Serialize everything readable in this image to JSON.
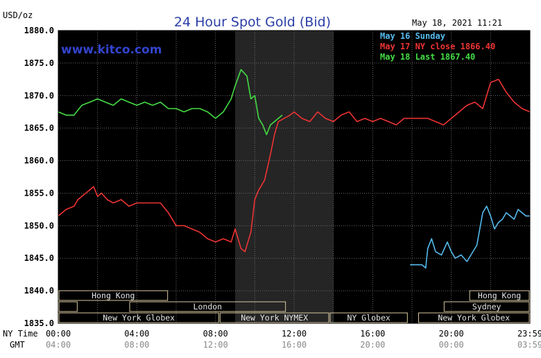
{
  "chart_data": {
    "type": "line",
    "title": "24 Hour Spot Gold (Bid)",
    "ylabel": "USD/oz",
    "timestamp": "May 18, 2021 11:21",
    "watermark": "www.kitco.com",
    "ylim": [
      1835,
      1880
    ],
    "y_ticks": [
      "1880.0",
      "1875.0",
      "1870.0",
      "1865.0",
      "1860.0",
      "1855.0",
      "1850.0",
      "1845.0",
      "1840.0",
      "1835.0"
    ],
    "x_row_labels": {
      "ny": "NY Time",
      "gmt": "GMT"
    },
    "x_ticks_ny": [
      "00:00",
      "04:00",
      "08:00",
      "12:00",
      "16:00",
      "20:00",
      "23:59"
    ],
    "x_ticks_gmt": [
      "04:00",
      "08:00",
      "12:00",
      "16:00",
      "20:00",
      "00:00",
      "03:59"
    ],
    "x_tick_hours": [
      0,
      4,
      8,
      12,
      16,
      20,
      24
    ],
    "grid": true,
    "highlight_hours": [
      9,
      14
    ],
    "legend_position": "top-right",
    "legend": [
      {
        "text": "May 16 Sunday",
        "color": "#55bbee"
      },
      {
        "text": "May 17 NY close 1866.40",
        "color": "#ee3333"
      },
      {
        "text": "May 18 Last 1867.40",
        "color": "#44dd44"
      }
    ],
    "sessions": [
      {
        "label": "Hong Kong",
        "row": 0,
        "start": 0,
        "end": 5.6
      },
      {
        "label": "Hong Kong",
        "row": 0,
        "start": 20.9,
        "end": 24
      },
      {
        "label": "",
        "row": 1,
        "start": 0,
        "end": 1.0
      },
      {
        "label": "London",
        "row": 1,
        "start": 3.6,
        "end": 11.6
      },
      {
        "label": "Sydney",
        "row": 1,
        "start": 19.6,
        "end": 24
      },
      {
        "label": "New York Globex",
        "row": 2,
        "start": 0,
        "end": 8.2
      },
      {
        "label": "New York NYMEX",
        "row": 2,
        "start": 8.2,
        "end": 13.8
      },
      {
        "label": "NY Globex",
        "row": 2,
        "start": 13.8,
        "end": 17.8
      },
      {
        "label": "New York Globex",
        "row": 2,
        "start": 18.3,
        "end": 24
      }
    ],
    "series": [
      {
        "color": "#55bbee",
        "x": [
          17.9,
          18.5,
          18.7,
          18.8,
          19.0,
          19.2,
          19.5,
          19.8,
          20.0,
          20.2,
          20.5,
          20.8,
          21.0,
          21.3,
          21.6,
          21.8,
          22.0,
          22.2,
          22.4,
          22.6,
          22.8,
          23.0,
          23.2,
          23.4,
          23.6,
          23.8,
          24.0
        ],
        "y": [
          1844.0,
          1844.0,
          1843.5,
          1846.5,
          1848.0,
          1846.0,
          1845.5,
          1847.5,
          1846.0,
          1845.0,
          1845.5,
          1844.5,
          1845.5,
          1847.0,
          1852.0,
          1853.0,
          1851.5,
          1849.5,
          1850.5,
          1851.0,
          1852.0,
          1851.5,
          1851.0,
          1852.5,
          1852.0,
          1851.5,
          1851.5
        ]
      },
      {
        "color": "#ee3333",
        "x": [
          0,
          0.4,
          0.8,
          1.0,
          1.4,
          1.8,
          2.0,
          2.2,
          2.5,
          2.8,
          3.2,
          3.6,
          4.0,
          4.4,
          4.8,
          5.2,
          5.6,
          6.0,
          6.4,
          6.8,
          7.2,
          7.6,
          8.0,
          8.4,
          8.8,
          9.0,
          9.3,
          9.5,
          9.8,
          10.0,
          10.2,
          10.5,
          10.8,
          11.0,
          11.2,
          11.5,
          11.8,
          12.0,
          12.4,
          12.8,
          13.2,
          13.6,
          14.0,
          14.4,
          14.8,
          15.2,
          15.6,
          16.0,
          16.4,
          16.8,
          17.2,
          17.6,
          18.0,
          18.4,
          18.8,
          19.2,
          19.6,
          20.0,
          20.4,
          20.8,
          21.2,
          21.6,
          22.0,
          22.4,
          22.8,
          23.2,
          23.6,
          24.0
        ],
        "y": [
          1851.5,
          1852.5,
          1853.0,
          1854.0,
          1855.0,
          1856.0,
          1854.5,
          1855.0,
          1854.0,
          1853.5,
          1854.0,
          1853.0,
          1853.5,
          1853.5,
          1853.5,
          1853.5,
          1852.0,
          1850.0,
          1850.0,
          1849.5,
          1849.0,
          1848.0,
          1847.5,
          1848.0,
          1847.5,
          1849.5,
          1846.5,
          1846.0,
          1849.0,
          1854.0,
          1855.5,
          1857.0,
          1861.0,
          1864.0,
          1866.0,
          1866.5,
          1867.0,
          1867.5,
          1866.5,
          1866.0,
          1867.5,
          1866.5,
          1866.0,
          1867.0,
          1867.5,
          1866.0,
          1866.5,
          1866.0,
          1866.5,
          1866.0,
          1865.5,
          1866.5,
          1866.5,
          1866.5,
          1866.5,
          1866.0,
          1865.5,
          1866.5,
          1867.5,
          1868.5,
          1869.0,
          1868.0,
          1872.0,
          1872.5,
          1870.5,
          1869.0,
          1868.0,
          1867.5
        ]
      },
      {
        "color": "#44dd44",
        "x": [
          0,
          0.4,
          0.8,
          1.2,
          1.6,
          2.0,
          2.4,
          2.8,
          3.2,
          3.6,
          4.0,
          4.4,
          4.8,
          5.2,
          5.6,
          6.0,
          6.4,
          6.8,
          7.2,
          7.6,
          8.0,
          8.4,
          8.8,
          9.0,
          9.3,
          9.6,
          9.8,
          10.0,
          10.2,
          10.4,
          10.6,
          10.8,
          11.0,
          11.2,
          11.4
        ],
        "y": [
          1867.5,
          1867.0,
          1867.0,
          1868.5,
          1869.0,
          1869.5,
          1869.0,
          1868.5,
          1869.5,
          1869.0,
          1868.5,
          1869.0,
          1868.5,
          1869.0,
          1868.0,
          1868.0,
          1867.5,
          1868.0,
          1868.0,
          1867.5,
          1866.5,
          1867.5,
          1869.5,
          1871.5,
          1874.0,
          1873.0,
          1869.5,
          1870.0,
          1866.5,
          1865.5,
          1864.0,
          1865.5,
          1866.0,
          1866.5,
          1867.0
        ]
      }
    ]
  }
}
